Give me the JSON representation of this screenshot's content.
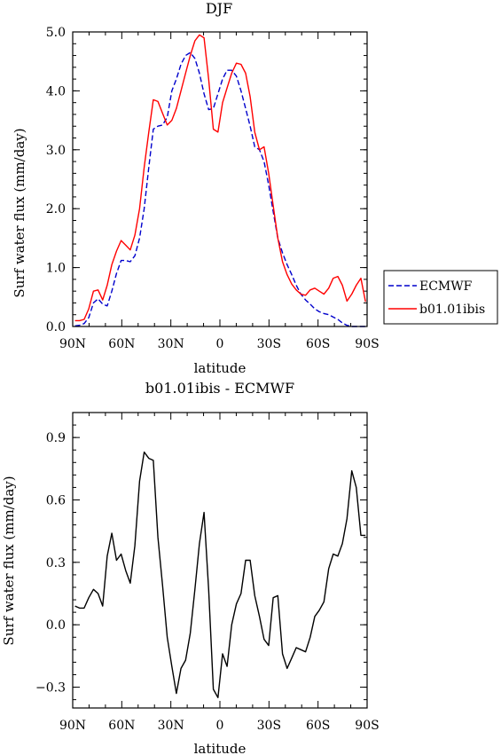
{
  "chart_data": [
    {
      "type": "line",
      "title": "DJF",
      "xlabel": "latitude",
      "ylabel": "Surf water flux (mm/day)",
      "xlim": [
        -90,
        90
      ],
      "ylim": [
        0,
        5
      ],
      "x_ticks": [
        {
          "value": -90,
          "label": "90N"
        },
        {
          "value": -60,
          "label": "60N"
        },
        {
          "value": -30,
          "label": "30N"
        },
        {
          "value": 0,
          "label": "0"
        },
        {
          "value": 30,
          "label": "30S"
        },
        {
          "value": 60,
          "label": "60S"
        },
        {
          "value": 90,
          "label": "90S"
        }
      ],
      "y_ticks": [
        {
          "value": 0,
          "label": "0.0"
        },
        {
          "value": 1,
          "label": "1.0"
        },
        {
          "value": 2,
          "label": "2.0"
        },
        {
          "value": 3,
          "label": "3.0"
        },
        {
          "value": 4,
          "label": "4.0"
        },
        {
          "value": 5,
          "label": "5.0"
        }
      ],
      "legend": {
        "placement": "right"
      },
      "series": [
        {
          "name": "ECMWF",
          "color": "#0000cc",
          "style": "dashed",
          "x": [
            -88.6,
            -85.8,
            -83,
            -80.2,
            -77.3,
            -74.5,
            -71.7,
            -68.9,
            -66.1,
            -63.2,
            -60.4,
            -57.6,
            -54.8,
            -52,
            -49.1,
            -46.3,
            -43.5,
            -40.7,
            -37.9,
            -35.1,
            -32.2,
            -29.4,
            -26.6,
            -23.8,
            -21,
            -18.1,
            -15.3,
            -12.5,
            -9.7,
            -6.9,
            -4,
            -1.2,
            1.6,
            4.4,
            7.2,
            10.1,
            12.9,
            15.7,
            18.5,
            21.3,
            24.2,
            27,
            29.8,
            32.6,
            35.4,
            38.3,
            41.1,
            43.9,
            46.7,
            49.5,
            52.4,
            55.2,
            58,
            60.8,
            63.6,
            66.5,
            69.3,
            72.1,
            74.9,
            77.7,
            80.6,
            83.4,
            86.2,
            89
          ],
          "y": [
            0.01,
            0.02,
            0.05,
            0.15,
            0.4,
            0.47,
            0.38,
            0.35,
            0.6,
            0.9,
            1.12,
            1.12,
            1.1,
            1.2,
            1.5,
            2.0,
            2.7,
            3.35,
            3.4,
            3.42,
            3.55,
            4.0,
            4.2,
            4.45,
            4.6,
            4.65,
            4.55,
            4.3,
            3.95,
            3.68,
            3.7,
            3.95,
            4.2,
            4.35,
            4.35,
            4.25,
            4.0,
            3.7,
            3.4,
            3.05,
            3.0,
            2.8,
            2.4,
            1.95,
            1.5,
            1.25,
            1.05,
            0.88,
            0.7,
            0.55,
            0.45,
            0.38,
            0.3,
            0.25,
            0.22,
            0.2,
            0.16,
            0.12,
            0.06,
            0.02,
            0.0,
            0.0,
            0.0,
            0.0
          ]
        },
        {
          "name": "b01.01ibis",
          "color": "#ff0000",
          "style": "solid",
          "x": [
            -88.6,
            -85.8,
            -83,
            -80.2,
            -77.3,
            -74.5,
            -71.7,
            -68.9,
            -66.1,
            -63.2,
            -60.4,
            -57.6,
            -54.8,
            -52,
            -49.1,
            -46.3,
            -43.5,
            -40.7,
            -37.9,
            -35.1,
            -32.2,
            -29.4,
            -26.6,
            -23.8,
            -21,
            -18.1,
            -15.3,
            -12.5,
            -9.7,
            -6.9,
            -4,
            -1.2,
            1.6,
            4.4,
            7.2,
            10.1,
            12.9,
            15.7,
            18.5,
            21.3,
            24.2,
            27,
            29.8,
            32.6,
            35.4,
            38.3,
            41.1,
            43.9,
            46.7,
            49.5,
            52.4,
            55.2,
            58,
            60.8,
            63.6,
            66.5,
            69.3,
            72.1,
            74.9,
            77.7,
            80.6,
            83.4,
            86.2,
            89
          ],
          "y": [
            0.1,
            0.1,
            0.12,
            0.3,
            0.6,
            0.62,
            0.45,
            0.7,
            1.05,
            1.28,
            1.46,
            1.38,
            1.3,
            1.55,
            2.0,
            2.7,
            3.3,
            3.85,
            3.82,
            3.62,
            3.42,
            3.5,
            3.7,
            4.0,
            4.3,
            4.6,
            4.85,
            4.95,
            4.9,
            4.2,
            3.35,
            3.3,
            3.8,
            4.05,
            4.3,
            4.47,
            4.45,
            4.3,
            3.9,
            3.3,
            3.0,
            3.05,
            2.6,
            2.05,
            1.5,
            1.1,
            0.88,
            0.72,
            0.62,
            0.55,
            0.53,
            0.62,
            0.65,
            0.6,
            0.55,
            0.65,
            0.82,
            0.85,
            0.7,
            0.43,
            0.55,
            0.7,
            0.82,
            0.42
          ]
        }
      ]
    },
    {
      "type": "line",
      "title": "b01.01ibis - ECMWF",
      "xlabel": "latitude",
      "ylabel": "Surf water flux (mm/day)",
      "xlim": [
        -90,
        90
      ],
      "ylim": [
        -0.4,
        1.02
      ],
      "x_ticks": [
        {
          "value": -90,
          "label": "90N"
        },
        {
          "value": -60,
          "label": "60N"
        },
        {
          "value": -30,
          "label": "30N"
        },
        {
          "value": 0,
          "label": "0"
        },
        {
          "value": 30,
          "label": "30S"
        },
        {
          "value": 60,
          "label": "60S"
        },
        {
          "value": 90,
          "label": "90S"
        }
      ],
      "y_ticks": [
        {
          "value": -0.3,
          "label": "−0.3"
        },
        {
          "value": 0,
          "label": "0.0"
        },
        {
          "value": 0.3,
          "label": "0.3"
        },
        {
          "value": 0.6,
          "label": "0.6"
        },
        {
          "value": 0.9,
          "label": "0.9"
        }
      ],
      "series": [
        {
          "color": "#000000",
          "style": "solid",
          "x": [
            -88.6,
            -85.8,
            -83,
            -80.2,
            -77.3,
            -74.5,
            -71.7,
            -68.9,
            -66.1,
            -63.2,
            -60.4,
            -57.6,
            -54.8,
            -52,
            -49.1,
            -46.3,
            -43.5,
            -40.7,
            -37.9,
            -35.1,
            -32.2,
            -29.4,
            -26.6,
            -23.8,
            -21,
            -18.1,
            -15.3,
            -12.5,
            -9.7,
            -6.9,
            -4,
            -1.2,
            1.6,
            4.4,
            7.2,
            10.1,
            12.9,
            15.7,
            18.5,
            21.3,
            24.2,
            27,
            29.8,
            32.6,
            35.4,
            38.3,
            41.1,
            43.9,
            46.7,
            49.5,
            52.4,
            55.2,
            58,
            60.8,
            63.6,
            66.5,
            69.3,
            72.1,
            74.9,
            77.7,
            80.6,
            83.4,
            86.2,
            89
          ],
          "y": [
            0.09,
            0.08,
            0.08,
            0.13,
            0.17,
            0.15,
            0.09,
            0.33,
            0.44,
            0.31,
            0.34,
            0.26,
            0.2,
            0.38,
            0.69,
            0.83,
            0.8,
            0.79,
            0.42,
            0.19,
            -0.06,
            -0.2,
            -0.33,
            -0.21,
            -0.17,
            -0.04,
            0.17,
            0.39,
            0.54,
            0.17,
            -0.31,
            -0.35,
            -0.14,
            -0.2,
            0.0,
            0.1,
            0.15,
            0.31,
            0.31,
            0.14,
            0.04,
            -0.07,
            -0.1,
            0.13,
            0.14,
            -0.14,
            -0.21,
            -0.16,
            -0.11,
            -0.12,
            -0.13,
            -0.06,
            0.04,
            0.07,
            0.11,
            0.27,
            0.34,
            0.33,
            0.39,
            0.51,
            0.74,
            0.66,
            0.43,
            0.43
          ]
        }
      ]
    }
  ]
}
